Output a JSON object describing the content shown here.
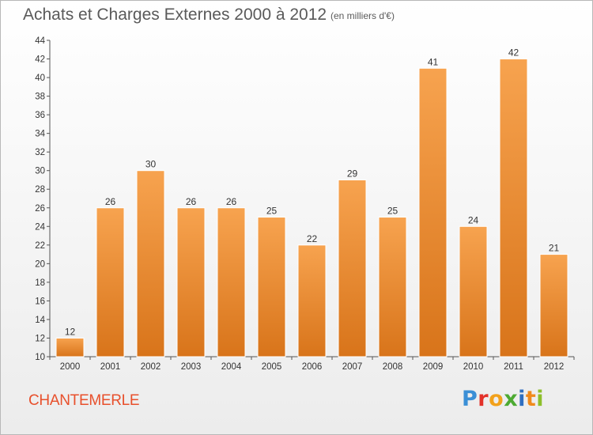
{
  "header": {
    "title": "Achats et Charges Externes 2000 à 2012",
    "subtitle": "(en milliers d'€)"
  },
  "footer": {
    "commune": "CHANTEMERLE",
    "logo_text": "Proxiti",
    "logo_letters": [
      "P",
      "r",
      "o",
      "x",
      "i",
      "t",
      "i"
    ]
  },
  "colors": {
    "bar_top": "#f7a34f",
    "bar_bottom": "#d8741a",
    "commune": "#e8502c"
  },
  "chart_data": {
    "type": "bar",
    "title": "Achats et Charges Externes 2000 à 2012",
    "subtitle": "(en milliers d'€)",
    "categories": [
      "2000",
      "2001",
      "2002",
      "2003",
      "2004",
      "2005",
      "2006",
      "2007",
      "2008",
      "2009",
      "2010",
      "2011",
      "2012"
    ],
    "values": [
      12,
      26,
      30,
      26,
      26,
      25,
      22,
      29,
      25,
      41,
      24,
      42,
      21
    ],
    "ylim": [
      10,
      44
    ],
    "yticks": [
      10,
      12,
      14,
      16,
      18,
      20,
      22,
      24,
      26,
      28,
      30,
      32,
      34,
      36,
      38,
      40,
      42,
      44
    ],
    "xlabel": "",
    "ylabel": "",
    "grid": false,
    "data_labels": true
  }
}
